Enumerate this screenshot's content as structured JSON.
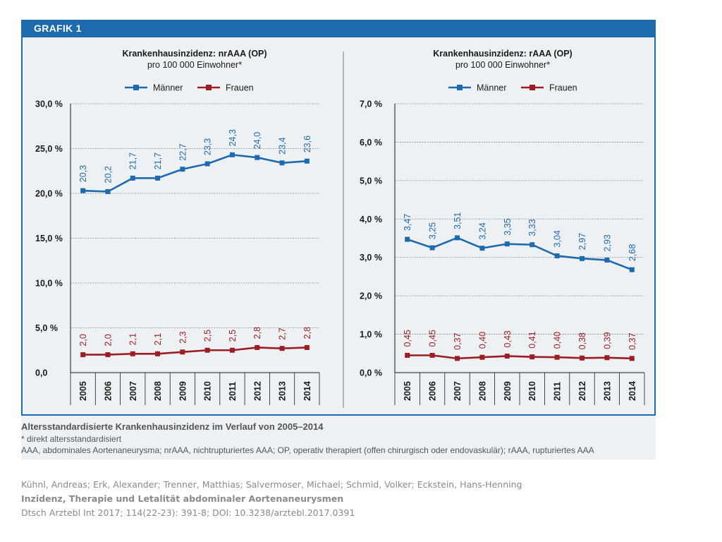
{
  "figure": {
    "label": "GRAFIK 1"
  },
  "legend": {
    "maenner": "Männer",
    "frauen": "Frauen"
  },
  "colors": {
    "maenner": "#1e6aae",
    "frauen": "#9c1d22",
    "header": "#1e6aae",
    "panel": "#eef1f3"
  },
  "chart_data": [
    {
      "type": "line",
      "title": "Krankenhausinzidenz: nrAAA (OP)",
      "subtitle": "pro 100 000 Einwohner*",
      "categories": [
        "2005",
        "2006",
        "2007",
        "2008",
        "2009",
        "2010",
        "2011",
        "2012",
        "2013",
        "2014"
      ],
      "y_ticks": [
        "0,0",
        "5,0 %",
        "10,0 %",
        "15,0 %",
        "20,0 %",
        "25,0 %",
        "30,0 %"
      ],
      "ylim": [
        0,
        30
      ],
      "grid": true,
      "legend_position": "top",
      "series": [
        {
          "name": "Männer",
          "values": [
            20.3,
            20.2,
            21.7,
            21.7,
            22.7,
            23.3,
            24.3,
            24.0,
            23.4,
            23.6
          ],
          "labels": [
            "20,3",
            "20,2",
            "21,7",
            "21,7",
            "22,7",
            "23,3",
            "24,3",
            "24,0",
            "23,4",
            "23,6"
          ]
        },
        {
          "name": "Frauen",
          "values": [
            2.0,
            2.0,
            2.1,
            2.1,
            2.3,
            2.5,
            2.5,
            2.8,
            2.7,
            2.8
          ],
          "labels": [
            "2,0",
            "2,0",
            "2,1",
            "2,1",
            "2,3",
            "2,5",
            "2,5",
            "2,8",
            "2,7",
            "2,8"
          ]
        }
      ]
    },
    {
      "type": "line",
      "title": "Krankenhausinzidenz: rAAA (OP)",
      "subtitle": "pro 100 000 Einwohner*",
      "categories": [
        "2005",
        "2006",
        "2007",
        "2008",
        "2009",
        "2010",
        "2011",
        "2012",
        "2013",
        "2014"
      ],
      "y_ticks": [
        "0,0 %",
        "1,0 %",
        "2,0 %",
        "3,0 %",
        "4,0 %",
        "5,0 %",
        "6,0 %",
        "7,0 %"
      ],
      "ylim": [
        0,
        7
      ],
      "grid": true,
      "legend_position": "top",
      "series": [
        {
          "name": "Männer",
          "values": [
            3.47,
            3.25,
            3.51,
            3.24,
            3.35,
            3.33,
            3.04,
            2.97,
            2.93,
            2.68
          ],
          "labels": [
            "3,47",
            "3,25",
            "3,51",
            "3,24",
            "3,35",
            "3,33",
            "3,04",
            "2,97",
            "2,93",
            "2,68"
          ]
        },
        {
          "name": "Frauen",
          "values": [
            0.45,
            0.45,
            0.37,
            0.4,
            0.43,
            0.41,
            0.4,
            0.38,
            0.39,
            0.37
          ],
          "labels": [
            "0,45",
            "0,45",
            "0,37",
            "0,40",
            "0,43",
            "0,41",
            "0,40",
            "0,38",
            "0,39",
            "0,37"
          ]
        }
      ]
    }
  ],
  "caption": {
    "title": "Altersstandardisierte Krankenhausinzidenz im Verlauf von 2005–2014",
    "note": "* direkt altersstandardisiert",
    "abbreviations": "AAA, abdominales Aortenaneurysma; nrAAA, nichtrupturiertes AAA; OP, operativ therapiert (offen chirurgisch oder endovaskulär); rAAA, rupturiertes AAA"
  },
  "citation": {
    "authors": "Kühnl, Andreas; Erk, Alexander; Trenner, Matthias; Salvermoser, Michael; Schmid, Volker; Eckstein, Hans-Henning",
    "title": "Inzidenz, Therapie und Letalität abdominaler Aortenaneurysmen",
    "reference": "Dtsch Arztebl Int 2017; 114(22-23): 391-8; DOI: 10.3238/arztebl.2017.0391"
  }
}
